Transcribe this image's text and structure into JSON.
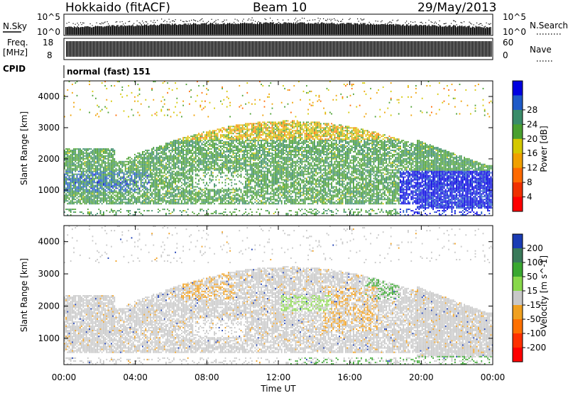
{
  "header": {
    "station": "Hokkaido (fitACF)",
    "beam": "Beam 10",
    "date": "29/May/2013"
  },
  "noise_panel": {
    "left_label": "N.Sky",
    "right_label": "N.Search",
    "left_ticks": [
      "10^5",
      "10^0"
    ],
    "right_ticks": [
      "10^5",
      "10^0"
    ]
  },
  "freq_panel": {
    "label_line1": "Freq.",
    "label_line2": "[MHz]",
    "left_ticks": [
      "18",
      "8"
    ],
    "right_ticks": [
      "60",
      "0"
    ],
    "right_label": "Nave"
  },
  "cpid_panel": {
    "label": "CPID",
    "mode": "normal (fast) 151"
  },
  "chart_data": [
    {
      "type": "heatmap",
      "quantity": "Power",
      "ylabel": "Slant Range [km]",
      "ylim": [
        180,
        4500
      ],
      "y_ticks": [
        "1000",
        "2000",
        "3000",
        "4000"
      ],
      "xlabel": "",
      "x_ticks": [
        "00:00",
        "04:00",
        "08:00",
        "12:00",
        "16:00",
        "20:00",
        "00:00"
      ],
      "colorbar_label": "Power [dB]",
      "colorbar_ticks": [
        "4",
        "8",
        "12",
        "16",
        "20",
        "24",
        "28"
      ],
      "colorbar_colors": [
        "#0000e0",
        "#1e5ac8",
        "#3a8c6a",
        "#4aa030",
        "#d4c800",
        "#f0a000",
        "#ff6a00",
        "#f03000",
        "#ff0000"
      ],
      "regions_note": "Echo bands 600-3300 km through the day; strongest power (24-30 dB) after 18:00 UT below 1500 km"
    },
    {
      "type": "heatmap",
      "quantity": "Velocity",
      "ylabel": "Slant Range [km]",
      "ylim": [
        180,
        4500
      ],
      "y_ticks": [
        "1000",
        "2000",
        "3000",
        "4000"
      ],
      "xlabel": "Time UT",
      "x_ticks": [
        "00:00",
        "04:00",
        "08:00",
        "12:00",
        "16:00",
        "20:00",
        "00:00"
      ],
      "colorbar_label": "Velocity [m s^-1]",
      "colorbar_ticks": [
        "200",
        "100",
        "50",
        "15",
        "-15",
        "-50",
        "-100",
        "-200"
      ],
      "colorbar_colors": [
        "#1a3cb4",
        "#3a7a5a",
        "#3aa830",
        "#88d84a",
        "#c8c8c8",
        "#f0a020",
        "#ff7000",
        "#ff3000",
        "#ff0000"
      ]
    }
  ]
}
